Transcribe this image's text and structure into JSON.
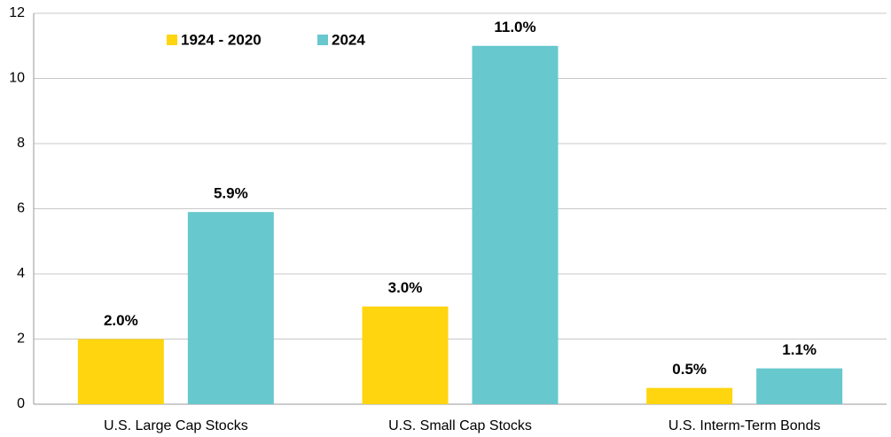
{
  "chart_data": {
    "type": "bar",
    "categories": [
      "U.S. Large Cap Stocks",
      "U.S. Small Cap Stocks",
      "U.S. Interm-Term Bonds"
    ],
    "series": [
      {
        "name": "1924 - 2020",
        "color": "#ffd50f",
        "values": [
          2.0,
          3.0,
          0.5
        ],
        "value_labels": [
          "2.0%",
          "3.0%",
          "0.5%"
        ]
      },
      {
        "name": "2024",
        "color": "#67c8ce",
        "values": [
          5.9,
          11.0,
          1.1
        ],
        "value_labels": [
          "5.9%",
          "11.0%",
          "1.1%"
        ]
      }
    ],
    "ylim": [
      0,
      12
    ],
    "yticks": [
      0,
      2,
      4,
      6,
      8,
      10,
      12
    ],
    "grid": true,
    "legend": "top-left"
  }
}
